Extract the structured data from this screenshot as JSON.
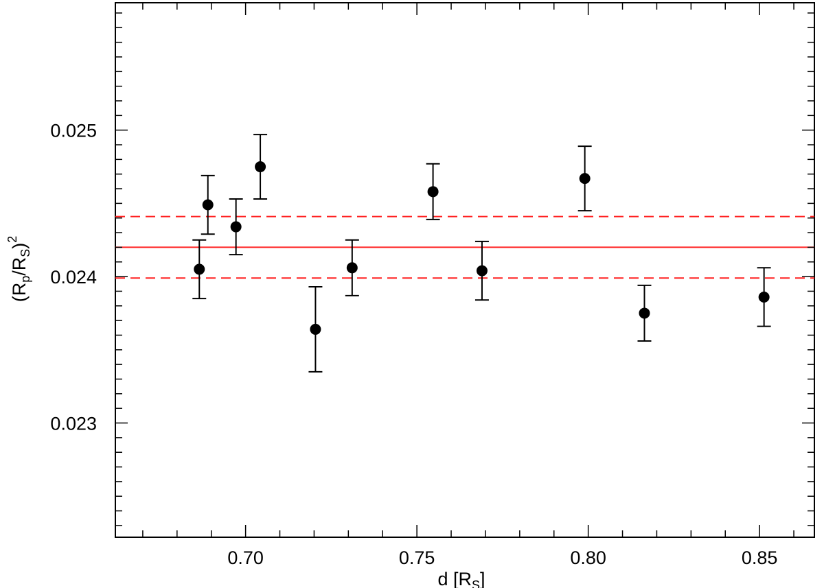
{
  "chart_data": {
    "type": "scatter",
    "xlabel": "d [R",
    "xlabel_sub": "S",
    "xlabel_close": "]",
    "ylabel": {
      "open": "(R",
      "sub1": "p",
      "slash": "/R",
      "sub2": "S",
      "close": ")",
      "sup": "2"
    },
    "xlim": [
      0.662,
      0.866
    ],
    "ylim": [
      0.02222,
      0.02587
    ],
    "x_ticks": [
      {
        "value": 0.7,
        "label": "0.70"
      },
      {
        "value": 0.75,
        "label": "0.75"
      },
      {
        "value": 0.8,
        "label": "0.80"
      },
      {
        "value": 0.85,
        "label": "0.85"
      }
    ],
    "y_ticks": [
      {
        "value": 0.023,
        "label": "0.023"
      },
      {
        "value": 0.024,
        "label": "0.024"
      },
      {
        "value": 0.025,
        "label": "0.025"
      }
    ],
    "points": [
      {
        "x": 0.6865,
        "y": 0.02405,
        "err": 0.0002
      },
      {
        "x": 0.689,
        "y": 0.02449,
        "err": 0.0002
      },
      {
        "x": 0.6972,
        "y": 0.02434,
        "err": 0.00019
      },
      {
        "x": 0.7043,
        "y": 0.02475,
        "err": 0.00022
      },
      {
        "x": 0.7204,
        "y": 0.02364,
        "err": 0.00029
      },
      {
        "x": 0.7311,
        "y": 0.02406,
        "err": 0.00019
      },
      {
        "x": 0.7547,
        "y": 0.02458,
        "err": 0.00019
      },
      {
        "x": 0.769,
        "y": 0.02404,
        "err": 0.0002
      },
      {
        "x": 0.799,
        "y": 0.02467,
        "err": 0.00022
      },
      {
        "x": 0.8164,
        "y": 0.02375,
        "err": 0.00019
      },
      {
        "x": 0.8513,
        "y": 0.02386,
        "err": 0.0002
      }
    ],
    "mean_line": 0.0242,
    "band_lines": [
      0.02441,
      0.02399
    ],
    "colors": {
      "points": "#000000",
      "fit": "#ff2020"
    },
    "grid": false,
    "legend": "none"
  }
}
